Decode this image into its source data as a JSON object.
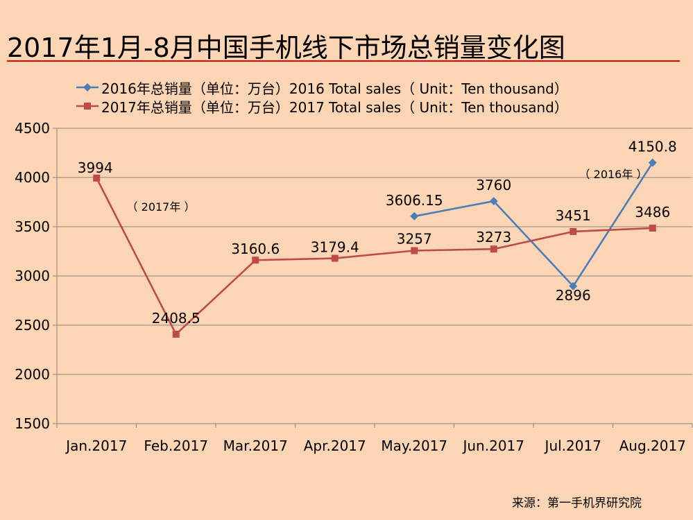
{
  "page": {
    "title": "2017年1月-8月中国手机线下市场总销量变化图",
    "source_note": "来源：第一手机界研究院"
  },
  "chart_data": {
    "type": "line",
    "categories": [
      "Jan.2017",
      "Feb.2017",
      "Mar.2017",
      "Apr.2017",
      "May.2017",
      "Jun.2017",
      "Jul.2017",
      "Aug.2017"
    ],
    "ylim": [
      1500,
      4500
    ],
    "yticks": [
      "1500",
      "2000",
      "2500",
      "3000",
      "3500",
      "4000",
      "4500"
    ],
    "grid": true,
    "legend_position": "top-left",
    "series": [
      {
        "name": "2016年总销量（单位：万台）2016 Total sales（ Unit：Ten thousand）",
        "color": "#4a7ebb",
        "marker": "diamond",
        "values": [
          null,
          null,
          null,
          null,
          3606.15,
          3760,
          2896,
          4150.8
        ],
        "labels": [
          "",
          "",
          "",
          "",
          "3606.15",
          "3760",
          "2896",
          "4150.8"
        ]
      },
      {
        "name": "2017年总销量（单位：万台）2017 Total sales（ Unit：Ten thousand）",
        "color": "#be4b48",
        "marker": "square",
        "values": [
          3994,
          2408.5,
          3160.6,
          3179.4,
          3257,
          3273,
          3451,
          3486
        ],
        "labels": [
          "3994",
          "2408.5",
          "3160.6",
          "3179.4",
          "3257",
          "3273",
          "3451",
          "3486"
        ]
      }
    ],
    "annotations": [
      {
        "text": "（ 2017年 ）"
      },
      {
        "text": "（ 2016年 ）"
      }
    ]
  }
}
